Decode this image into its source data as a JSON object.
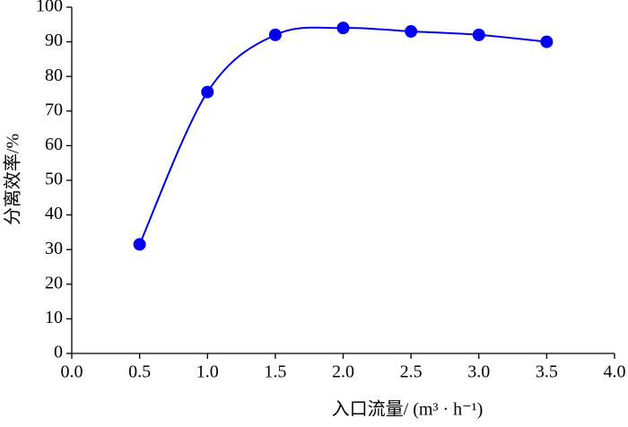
{
  "chart_data": {
    "type": "line",
    "x_label": "入口流量/ (m³ · h⁻¹)",
    "y_label": "分离效率/%",
    "x": [
      0.5,
      1.0,
      1.5,
      2.0,
      2.5,
      3.0,
      3.5
    ],
    "series": [
      {
        "color": "#0000ee",
        "values": [
          31.5,
          75.5,
          92,
          94,
          93,
          92,
          90
        ]
      }
    ],
    "xlim": [
      0,
      4
    ],
    "xticks": [
      {
        "value": 0,
        "label": "0.0"
      },
      {
        "value": 0.5,
        "label": "0.5"
      },
      {
        "value": 1,
        "label": "1.0"
      },
      {
        "value": 1.5,
        "label": "1.5"
      },
      {
        "value": 2,
        "label": "2.0"
      },
      {
        "value": 2.5,
        "label": "2.5"
      },
      {
        "value": 3,
        "label": "3.0"
      },
      {
        "value": 3.5,
        "label": "3.5"
      },
      {
        "value": 4,
        "label": "4.0"
      }
    ],
    "ylim": [
      0,
      100
    ],
    "yticks": [
      0,
      10,
      20,
      30,
      40,
      50,
      60,
      70,
      80,
      90,
      100
    ],
    "grid": false
  }
}
